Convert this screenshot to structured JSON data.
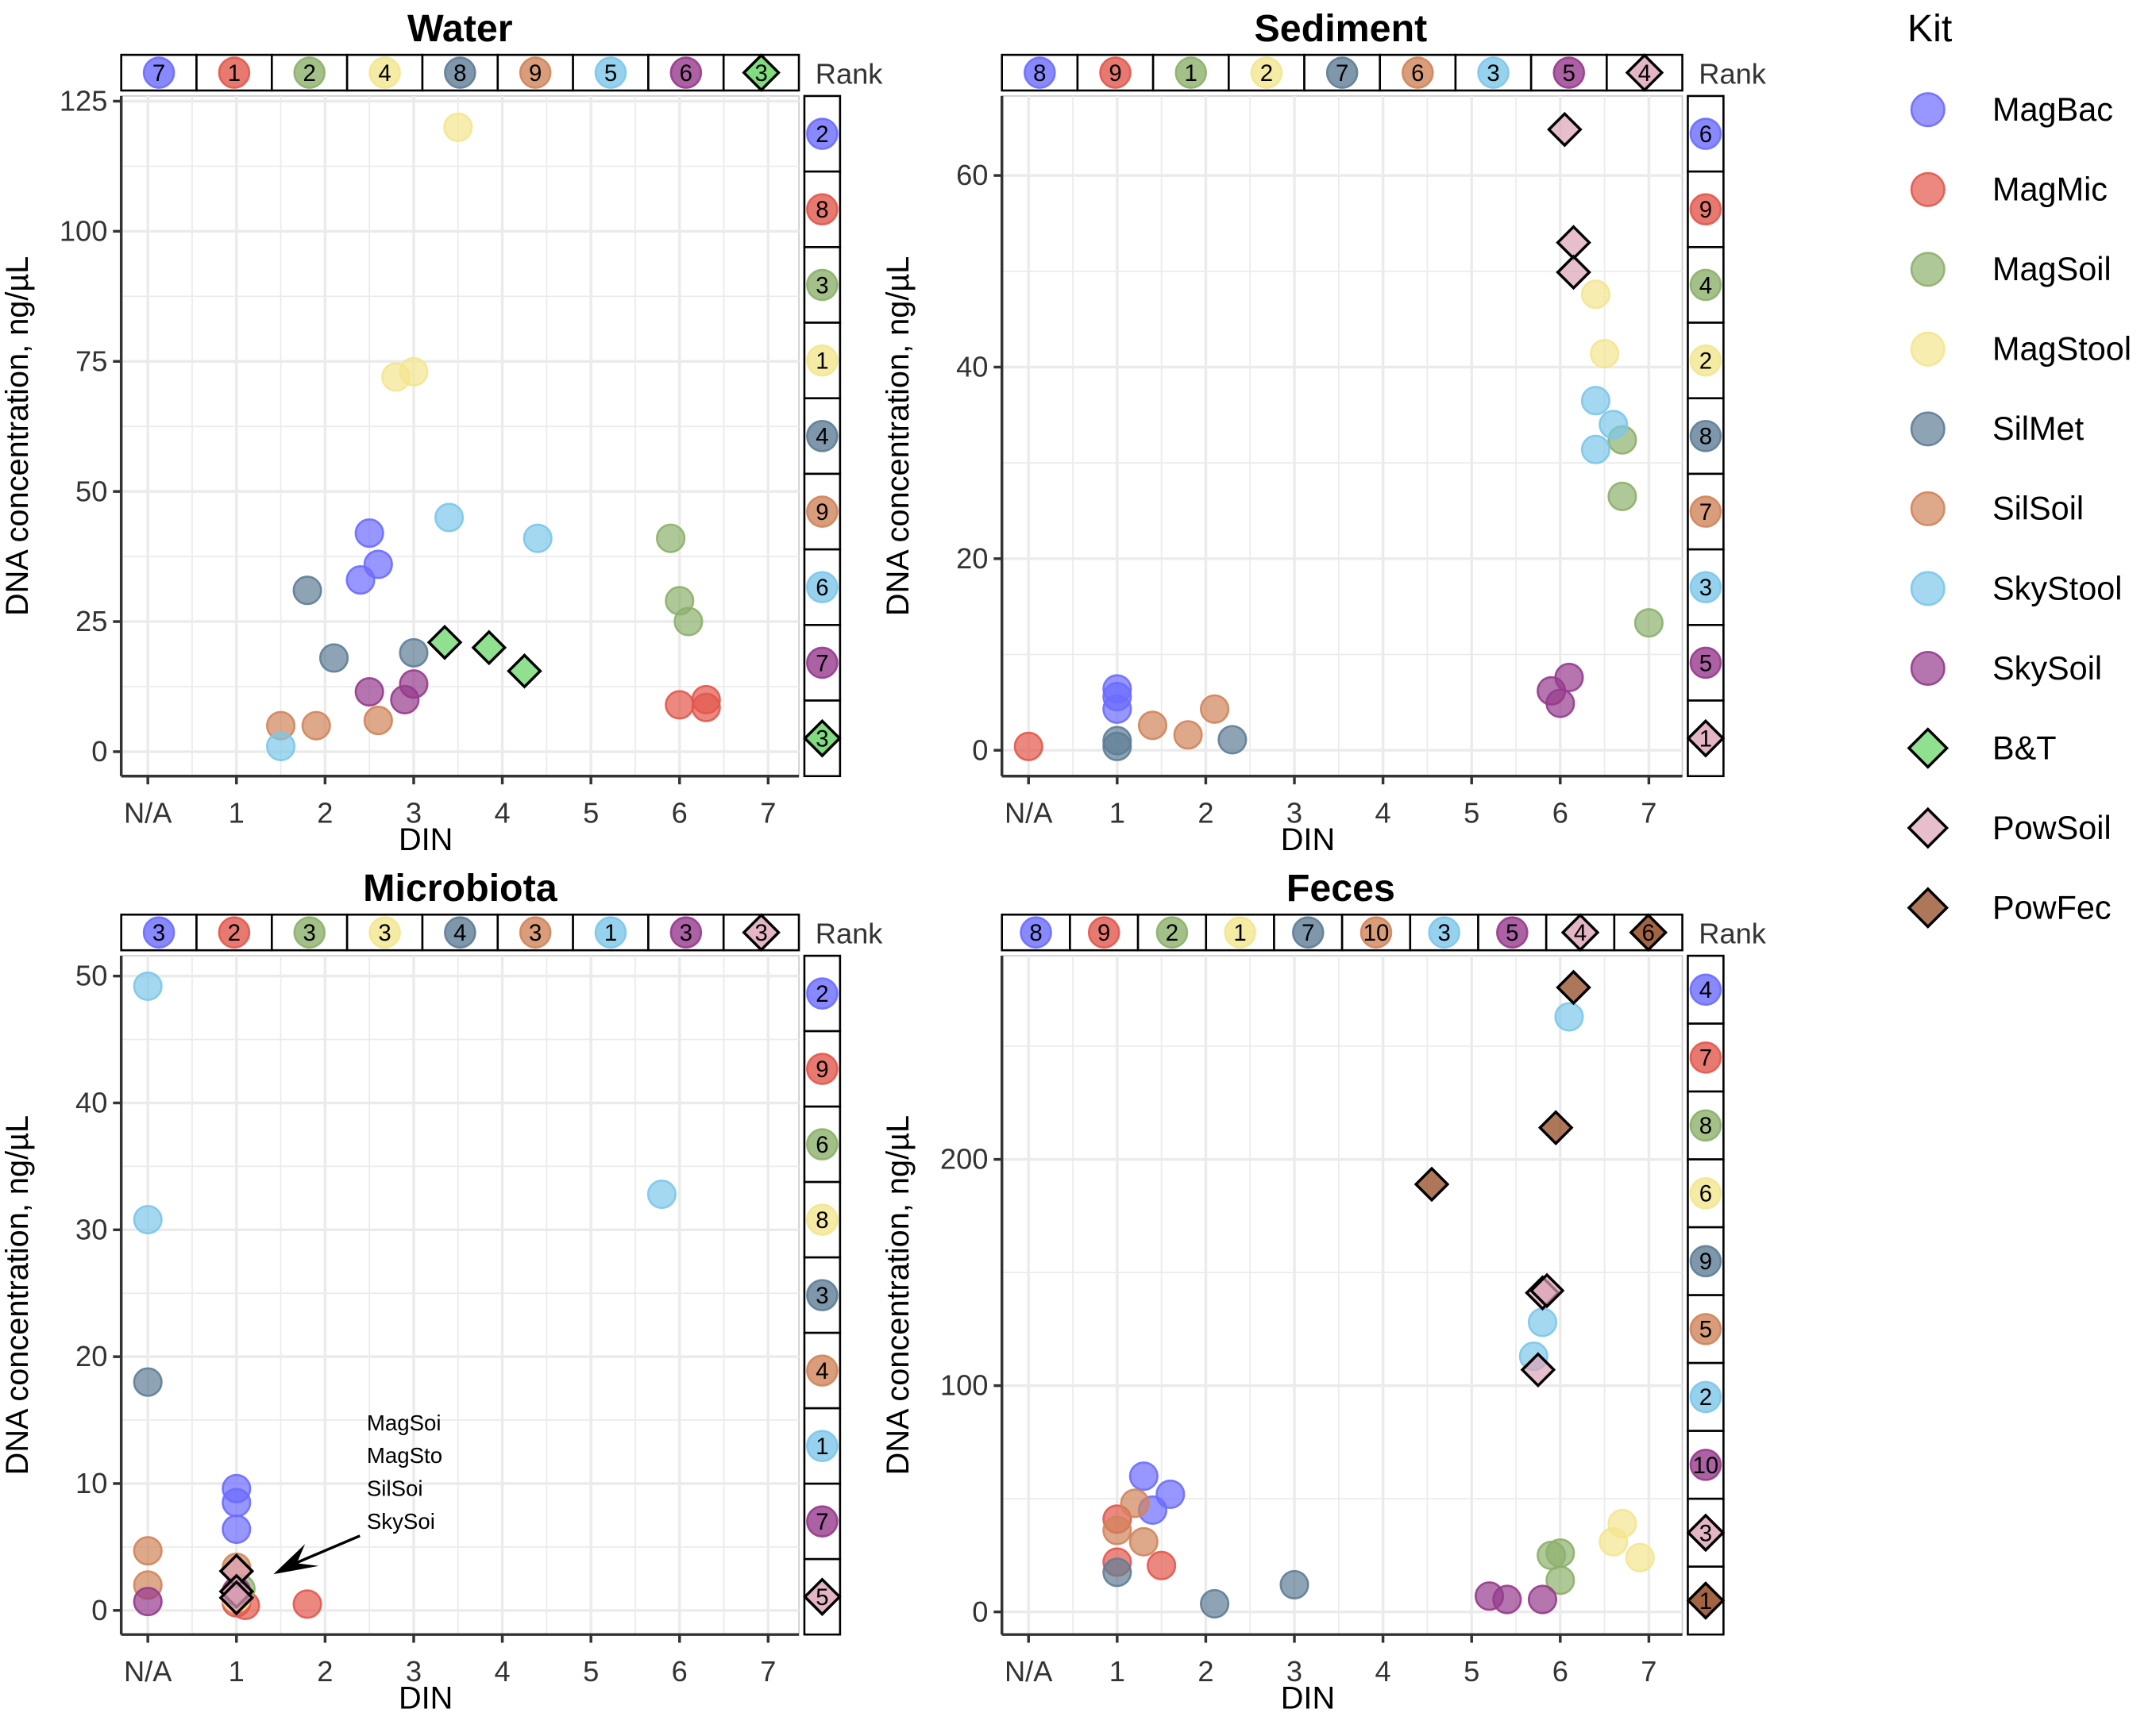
{
  "legend": {
    "title": "Kit",
    "kits": [
      {
        "name": "MagBac",
        "color": "#6b6bff",
        "shape": "circle"
      },
      {
        "name": "MagMic",
        "color": "#e2574c",
        "shape": "circle"
      },
      {
        "name": "MagSoil",
        "color": "#8cb06c",
        "shape": "circle"
      },
      {
        "name": "MagStool",
        "color": "#f3e68f",
        "shape": "circle"
      },
      {
        "name": "SilMet",
        "color": "#5e7d96",
        "shape": "circle"
      },
      {
        "name": "SilSoil",
        "color": "#d0845a",
        "shape": "circle"
      },
      {
        "name": "SkyStool",
        "color": "#7cc7ea",
        "shape": "circle"
      },
      {
        "name": "SkySoil",
        "color": "#963a8c",
        "shape": "circle"
      },
      {
        "name": "B&T",
        "color": "#5fd35f",
        "shape": "diamond"
      },
      {
        "name": "PowSoil",
        "color": "#dca3b6",
        "shape": "diamond"
      },
      {
        "name": "PowFec",
        "color": "#8b3d14",
        "shape": "diamond"
      }
    ]
  },
  "rank_label": "Rank",
  "chart_data": [
    {
      "type": "scatter",
      "title": "Water",
      "xlabel": "DIN",
      "ylabel": "DNA concentration, ng/µL",
      "xticks": [
        "N/A",
        "1",
        "2",
        "3",
        "4",
        "5",
        "6",
        "7"
      ],
      "yticks": [
        0,
        25,
        50,
        75,
        100,
        125
      ],
      "ylim": [
        -4.7,
        126
      ],
      "kits": [
        "MagBac",
        "MagMic",
        "MagSoil",
        "MagStool",
        "SilMet",
        "SilSoil",
        "SkyStool",
        "SkySoil",
        "B&T"
      ],
      "rank_top": [
        "7",
        "1",
        "2",
        "4",
        "8",
        "9",
        "5",
        "6",
        "3"
      ],
      "rank_right": [
        "2",
        "8",
        "3",
        "1",
        "4",
        "9",
        "6",
        "7",
        "3"
      ],
      "series": [
        {
          "name": "MagBac",
          "points": [
            [
              2.4,
              33
            ],
            [
              2.5,
              42
            ],
            [
              2.6,
              36
            ]
          ]
        },
        {
          "name": "MagMic",
          "points": [
            [
              6,
              9
            ],
            [
              6.3,
              10
            ],
            [
              6.3,
              8.5
            ]
          ]
        },
        {
          "name": "MagSoil",
          "points": [
            [
              5.9,
              41
            ],
            [
              6,
              29
            ],
            [
              6.1,
              25
            ]
          ]
        },
        {
          "name": "MagStool",
          "points": [
            [
              3.5,
              120
            ],
            [
              2.8,
              72
            ],
            [
              3,
              73
            ]
          ]
        },
        {
          "name": "SilMet",
          "points": [
            [
              1.8,
              31
            ],
            [
              2.1,
              18
            ],
            [
              3,
              19
            ]
          ]
        },
        {
          "name": "SilSoil",
          "points": [
            [
              1.5,
              5
            ],
            [
              1.9,
              5
            ],
            [
              2.6,
              6
            ]
          ]
        },
        {
          "name": "SkyStool",
          "points": [
            [
              1.5,
              1
            ],
            [
              3.4,
              45
            ],
            [
              4.4,
              41
            ]
          ]
        },
        {
          "name": "SkySoil",
          "points": [
            [
              2.5,
              11.5
            ],
            [
              2.9,
              10
            ],
            [
              3,
              13
            ]
          ]
        },
        {
          "name": "B&T",
          "points": [
            [
              3.35,
              21
            ],
            [
              3.85,
              20
            ],
            [
              4.25,
              15.5
            ]
          ]
        }
      ]
    },
    {
      "type": "scatter",
      "title": "Sediment",
      "xlabel": "DIN",
      "ylabel": "DNA concentration, ng/µL",
      "xticks": [
        "N/A",
        "1",
        "2",
        "3",
        "4",
        "5",
        "6",
        "7"
      ],
      "yticks": [
        0,
        20,
        40,
        60
      ],
      "ylim": [
        -2.7,
        68.3
      ],
      "kits": [
        "MagBac",
        "MagMic",
        "MagSoil",
        "MagStool",
        "SilMet",
        "SilSoil",
        "SkyStool",
        "SkySoil",
        "PowSoil"
      ],
      "rank_top": [
        "8",
        "9",
        "1",
        "2",
        "7",
        "6",
        "3",
        "5",
        "4"
      ],
      "rank_right": [
        "6",
        "9",
        "4",
        "2",
        "8",
        "7",
        "3",
        "5",
        "1"
      ],
      "series": [
        {
          "name": "MagBac",
          "points": [
            [
              1,
              6.4
            ],
            [
              1,
              5.6
            ],
            [
              1,
              4.3
            ]
          ]
        },
        {
          "name": "MagMic",
          "points": [
            [
              0,
              0.4
            ]
          ]
        },
        {
          "name": "MagSoil",
          "points": [
            [
              6.7,
              32.4
            ],
            [
              6.7,
              26.5
            ],
            [
              7,
              13.3
            ]
          ]
        },
        {
          "name": "MagStool",
          "points": [
            [
              6.4,
              47.6
            ],
            [
              6.5,
              41.4
            ]
          ]
        },
        {
          "name": "SilMet",
          "points": [
            [
              1,
              1
            ],
            [
              1,
              0.4
            ],
            [
              2.3,
              1.1
            ]
          ]
        },
        {
          "name": "SilSoil",
          "points": [
            [
              1.4,
              2.6
            ],
            [
              1.8,
              1.6
            ],
            [
              2.1,
              4.3
            ]
          ]
        },
        {
          "name": "SkyStool",
          "points": [
            [
              6.4,
              36.5
            ],
            [
              6.6,
              34
            ],
            [
              6.4,
              31.4
            ]
          ]
        },
        {
          "name": "SkySoil",
          "points": [
            [
              5.9,
              6.2
            ],
            [
              6,
              4.9
            ],
            [
              6.1,
              7.6
            ]
          ]
        },
        {
          "name": "PowSoil",
          "points": [
            [
              6.05,
              64.8
            ],
            [
              6.15,
              53
            ],
            [
              6.15,
              49.9
            ]
          ]
        }
      ]
    },
    {
      "type": "scatter",
      "title": "Microbiota",
      "xlabel": "DIN",
      "ylabel": "DNA concentration, ng/µL",
      "xticks": [
        "N/A",
        "1",
        "2",
        "3",
        "4",
        "5",
        "6",
        "7"
      ],
      "yticks": [
        0,
        10,
        20,
        30,
        40,
        50
      ],
      "ylim": [
        -1.9,
        51.6
      ],
      "kits": [
        "MagBac",
        "MagMic",
        "MagSoil",
        "MagStool",
        "SilMet",
        "SilSoil",
        "SkyStool",
        "SkySoil",
        "PowSoil"
      ],
      "rank_top": [
        "3",
        "2",
        "3",
        "3",
        "4",
        "3",
        "1",
        "3",
        "3"
      ],
      "rank_right": [
        "2",
        "9",
        "6",
        "8",
        "3",
        "4",
        "1",
        "7",
        "5"
      ],
      "annotation": {
        "lines": [
          "MagSoi",
          "MagSto",
          "SilSoi",
          "SkySoi"
        ]
      },
      "series": [
        {
          "name": "MagBac",
          "points": [
            [
              1,
              9.6
            ],
            [
              1,
              8.5
            ],
            [
              1,
              6.4
            ]
          ]
        },
        {
          "name": "MagMic",
          "points": [
            [
              1.1,
              0.4
            ],
            [
              1.8,
              0.5
            ],
            [
              1,
              0.6
            ]
          ]
        },
        {
          "name": "MagSoil",
          "points": [
            [
              1.05,
              1.7
            ]
          ]
        },
        {
          "name": "MagStool",
          "points": [
            [
              1,
              1
            ]
          ]
        },
        {
          "name": "SilMet",
          "points": [
            [
              0,
              18
            ]
          ]
        },
        {
          "name": "SilSoil",
          "points": [
            [
              0,
              4.7
            ],
            [
              0,
              2
            ],
            [
              1,
              3.4
            ]
          ]
        },
        {
          "name": "SkyStool",
          "points": [
            [
              0,
              49.2
            ],
            [
              0,
              30.8
            ],
            [
              5.8,
              32.8
            ]
          ]
        },
        {
          "name": "SkySoil",
          "points": [
            [
              0,
              0.7
            ],
            [
              1,
              1.5
            ]
          ]
        },
        {
          "name": "PowSoil",
          "points": [
            [
              1,
              3.1
            ],
            [
              1,
              1.5
            ],
            [
              1,
              1
            ]
          ]
        }
      ]
    },
    {
      "type": "scatter",
      "title": "Feces",
      "xlabel": "DIN",
      "ylabel": "DNA concentration, ng/µL",
      "xticks": [
        "N/A",
        "1",
        "2",
        "3",
        "4",
        "5",
        "6",
        "7"
      ],
      "yticks": [
        0,
        100,
        200
      ],
      "ylim": [
        -10,
        290
      ],
      "kits": [
        "MagBac",
        "MagMic",
        "MagSoil",
        "MagStool",
        "SilMet",
        "SilSoil",
        "SkyStool",
        "SkySoil",
        "PowSoil",
        "PowFec"
      ],
      "rank_top": [
        "8",
        "9",
        "2",
        "1",
        "7",
        "10",
        "3",
        "5",
        "4",
        "6"
      ],
      "rank_right": [
        "4",
        "7",
        "8",
        "6",
        "9",
        "5",
        "2",
        "10",
        "3",
        "1"
      ],
      "series": [
        {
          "name": "MagBac",
          "points": [
            [
              1.3,
              60
            ],
            [
              1.6,
              52
            ],
            [
              1.4,
              45
            ]
          ]
        },
        {
          "name": "MagMic",
          "points": [
            [
              1,
              41
            ],
            [
              1.5,
              20.5
            ],
            [
              1,
              22
            ]
          ]
        },
        {
          "name": "MagSoil",
          "points": [
            [
              5.9,
              25
            ],
            [
              6,
              26
            ],
            [
              6,
              14
            ]
          ]
        },
        {
          "name": "MagStool",
          "points": [
            [
              6.6,
              31
            ],
            [
              6.7,
              39
            ],
            [
              6.9,
              24
            ]
          ]
        },
        {
          "name": "SilMet",
          "points": [
            [
              1,
              17.5
            ],
            [
              2.1,
              3.6
            ],
            [
              3,
              12
            ]
          ]
        },
        {
          "name": "SilSoil",
          "points": [
            [
              1.2,
              48
            ],
            [
              1,
              36
            ],
            [
              1.3,
              31
            ]
          ]
        },
        {
          "name": "SkyStool",
          "points": [
            [
              6.1,
              263
            ],
            [
              5.8,
              128
            ],
            [
              5.7,
              113
            ]
          ]
        },
        {
          "name": "SkySoil",
          "points": [
            [
              5.2,
              7
            ],
            [
              5.4,
              5.5
            ],
            [
              5.8,
              5.5
            ]
          ]
        },
        {
          "name": "PowSoil",
          "points": [
            [
              5.8,
              141
            ],
            [
              5.85,
              142
            ],
            [
              5.75,
              107
            ]
          ]
        },
        {
          "name": "PowFec",
          "points": [
            [
              6.15,
              276
            ],
            [
              5.95,
              214
            ],
            [
              4.55,
              189
            ]
          ]
        }
      ]
    }
  ]
}
